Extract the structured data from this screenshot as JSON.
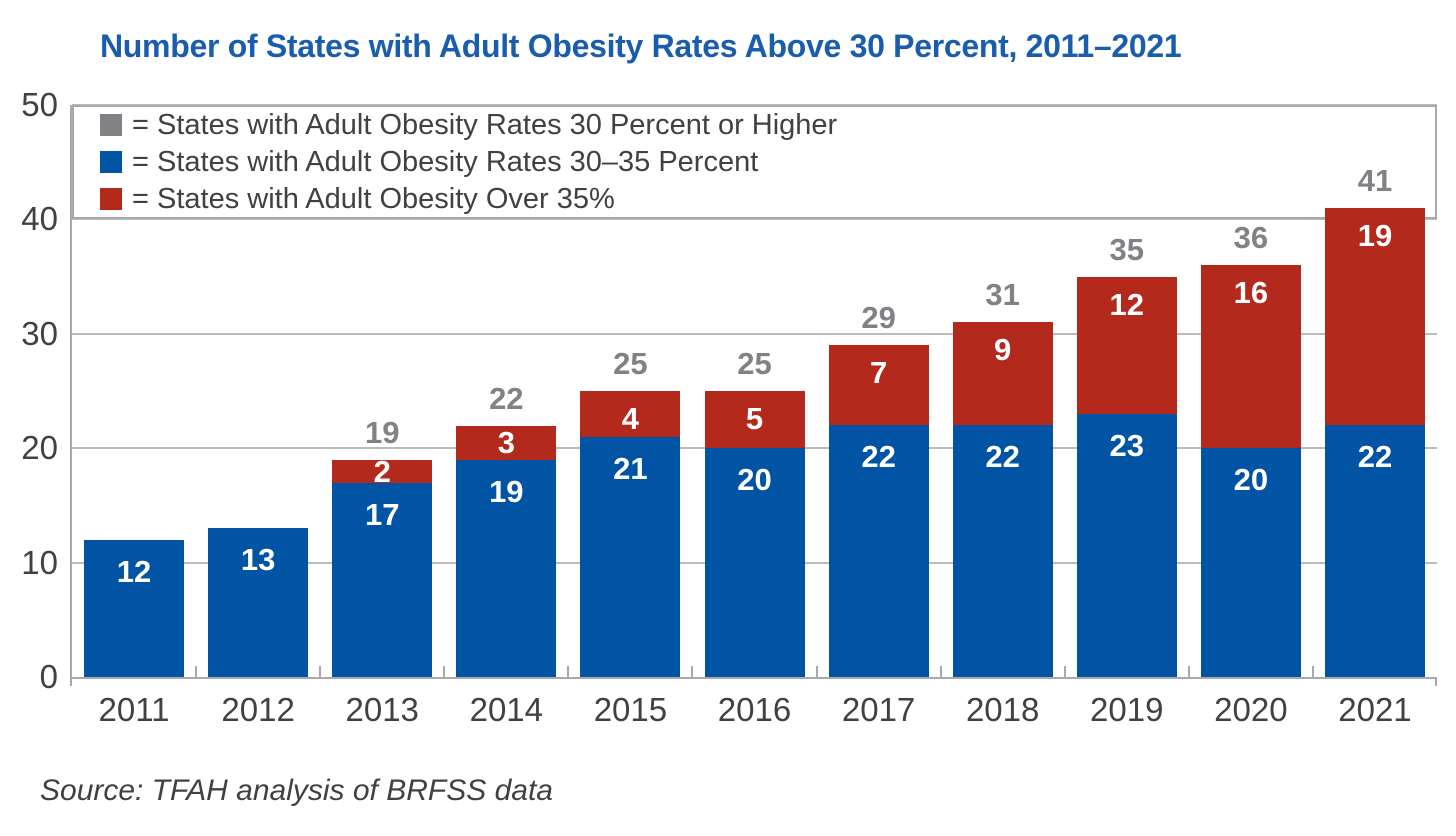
{
  "title": "Number of States with Adult Obesity Rates Above 30 Percent, 2011–2021",
  "source": "Source: TFAH analysis of BRFSS data",
  "colors": {
    "title_blue": "#1a5dad",
    "bar_blue": "#0054a3",
    "bar_red": "#b3291b",
    "total_gray": "#808285",
    "axis_gray": "#a7a9ac",
    "grid_gray": "#b9bbbd",
    "text_dark": "#414042",
    "label_white": "#ffffff"
  },
  "legend": [
    {
      "swatch_color": "#808285",
      "label": "= States with Adult Obesity Rates 30 Percent or Higher"
    },
    {
      "swatch_color": "#0054a3",
      "label": "= States with Adult Obesity Rates 30–35 Percent"
    },
    {
      "swatch_color": "#b3291b",
      "label": "= States with Adult Obesity Over 35%"
    }
  ],
  "chart_data": {
    "type": "bar",
    "stacked": true,
    "title": "Number of States with Adult Obesity Rates Above 30 Percent, 2011–2021",
    "categories": [
      "2011",
      "2012",
      "2013",
      "2014",
      "2015",
      "2016",
      "2017",
      "2018",
      "2019",
      "2020",
      "2021"
    ],
    "series": [
      {
        "name": "States with Adult Obesity Rates 30–35 Percent",
        "color": "#0054a3",
        "values": [
          12,
          13,
          17,
          19,
          21,
          20,
          22,
          22,
          23,
          20,
          22
        ]
      },
      {
        "name": "States with Adult Obesity Over 35%",
        "color": "#b3291b",
        "values": [
          0,
          0,
          2,
          3,
          4,
          5,
          7,
          9,
          12,
          16,
          19
        ]
      }
    ],
    "totals": [
      null,
      null,
      19,
      22,
      25,
      25,
      29,
      31,
      35,
      36,
      41
    ],
    "ylim": [
      0,
      50
    ],
    "yticks": [
      0,
      10,
      20,
      30,
      40,
      50
    ],
    "grid": true,
    "legend_position": "top-left-inside"
  }
}
